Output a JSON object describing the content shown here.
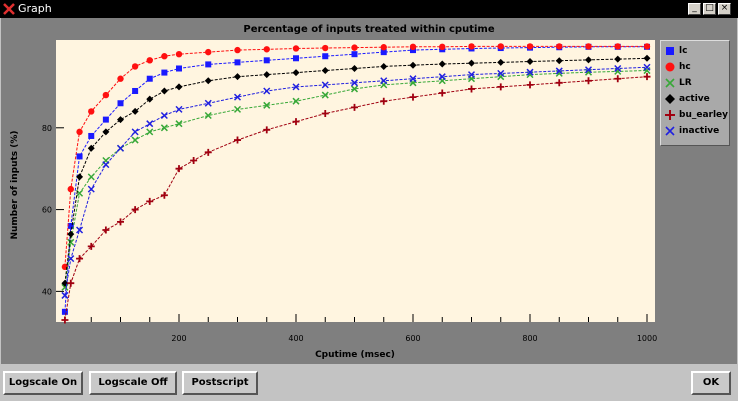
{
  "window": {
    "title": "Graph"
  },
  "titlebar_buttons": {
    "minimize": "_",
    "maximize": "□",
    "close": "×"
  },
  "buttons": {
    "logscale_on": "Logscale On",
    "logscale_off": "Logscale Off",
    "postscript": "Postscript",
    "ok": "OK"
  },
  "colors": {
    "plot_bg": "#fff5e0",
    "panel": "#7f7f7f",
    "lc": "#1a1aff",
    "hc": "#ff1010",
    "LR": "#38a838",
    "active": "#000000",
    "bu_earley": "#a00010",
    "inactive": "#2020e0"
  },
  "chart_data": {
    "type": "line",
    "title": "Percentage of inputs treated within cputime",
    "xlabel": "Cputime (msec)",
    "ylabel": "Number of inputs (%)",
    "xlim": [
      0,
      1000
    ],
    "ylim": [
      33,
      100
    ],
    "xticks": [
      200,
      400,
      600,
      800,
      1000
    ],
    "yticks": [
      40,
      60,
      80
    ],
    "legend_position": "right",
    "series": [
      {
        "name": "lc",
        "marker": "square",
        "color": "#1a1aff",
        "x": [
          5,
          15,
          30,
          50,
          75,
          100,
          125,
          150,
          175,
          200,
          250,
          300,
          350,
          400,
          450,
          500,
          550,
          600,
          650,
          700,
          750,
          800,
          850,
          900,
          950,
          1000
        ],
        "y": [
          35,
          56,
          73,
          78,
          82,
          86,
          89,
          92,
          93.5,
          94.5,
          95.5,
          96,
          96.5,
          97,
          97.5,
          98,
          98.5,
          99,
          99.2,
          99.4,
          99.5,
          99.6,
          99.7,
          99.8,
          99.8,
          99.8
        ]
      },
      {
        "name": "hc",
        "marker": "circle",
        "color": "#ff1010",
        "x": [
          5,
          15,
          30,
          50,
          75,
          100,
          125,
          150,
          175,
          200,
          250,
          300,
          350,
          400,
          450,
          500,
          550,
          600,
          650,
          700,
          750,
          800,
          850,
          900,
          950,
          1000
        ],
        "y": [
          46,
          65,
          79,
          84,
          88,
          92,
          95,
          96.5,
          97.5,
          98,
          98.5,
          99,
          99.2,
          99.4,
          99.5,
          99.6,
          99.7,
          99.8,
          99.8,
          99.9,
          99.9,
          99.9,
          99.9,
          99.9,
          99.9,
          99.9
        ]
      },
      {
        "name": "LR",
        "marker": "x",
        "color": "#38a838",
        "x": [
          5,
          15,
          30,
          50,
          75,
          100,
          125,
          150,
          175,
          200,
          250,
          300,
          350,
          400,
          450,
          500,
          550,
          600,
          650,
          700,
          750,
          800,
          850,
          900,
          950,
          1000
        ],
        "y": [
          41,
          52,
          64,
          68,
          72,
          75,
          77,
          79,
          80,
          81,
          83,
          84.5,
          85.5,
          86.5,
          88,
          89.5,
          90.5,
          91,
          91.5,
          92,
          92.5,
          93,
          93.3,
          93.6,
          93.8,
          94
        ]
      },
      {
        "name": "active",
        "marker": "diamond",
        "color": "#000000",
        "x": [
          5,
          15,
          30,
          50,
          75,
          100,
          125,
          150,
          175,
          200,
          250,
          300,
          350,
          400,
          450,
          500,
          550,
          600,
          650,
          700,
          750,
          800,
          850,
          900,
          950,
          1000
        ],
        "y": [
          42,
          54,
          68,
          75,
          79,
          82,
          84,
          87,
          89,
          90,
          91.5,
          92.5,
          93,
          93.5,
          94,
          94.5,
          95,
          95.3,
          95.6,
          95.8,
          96,
          96.2,
          96.4,
          96.6,
          96.8,
          97
        ]
      },
      {
        "name": "bu_earley",
        "marker": "plus",
        "color": "#a00010",
        "x": [
          5,
          15,
          30,
          50,
          75,
          100,
          125,
          150,
          175,
          200,
          225,
          250,
          300,
          350,
          400,
          450,
          500,
          550,
          600,
          650,
          700,
          750,
          800,
          850,
          900,
          950,
          1000
        ],
        "y": [
          33,
          42,
          48,
          51,
          55,
          57,
          60,
          62,
          63.5,
          70,
          72,
          74,
          77,
          79.5,
          81.5,
          83.5,
          85,
          86.5,
          87.5,
          88.5,
          89.5,
          90,
          90.5,
          91,
          91.5,
          92,
          92.5
        ]
      },
      {
        "name": "inactive",
        "marker": "x",
        "color": "#2020e0",
        "x": [
          5,
          15,
          30,
          50,
          75,
          100,
          125,
          150,
          175,
          200,
          250,
          300,
          350,
          400,
          450,
          500,
          550,
          600,
          650,
          700,
          750,
          800,
          850,
          900,
          950,
          1000
        ],
        "y": [
          39,
          48,
          55,
          65,
          71,
          75,
          79,
          81,
          83,
          84.5,
          86,
          87.5,
          89,
          90,
          90.5,
          91,
          91.5,
          92,
          92.5,
          93,
          93.3,
          93.6,
          93.9,
          94.2,
          94.5,
          94.8
        ]
      }
    ]
  }
}
